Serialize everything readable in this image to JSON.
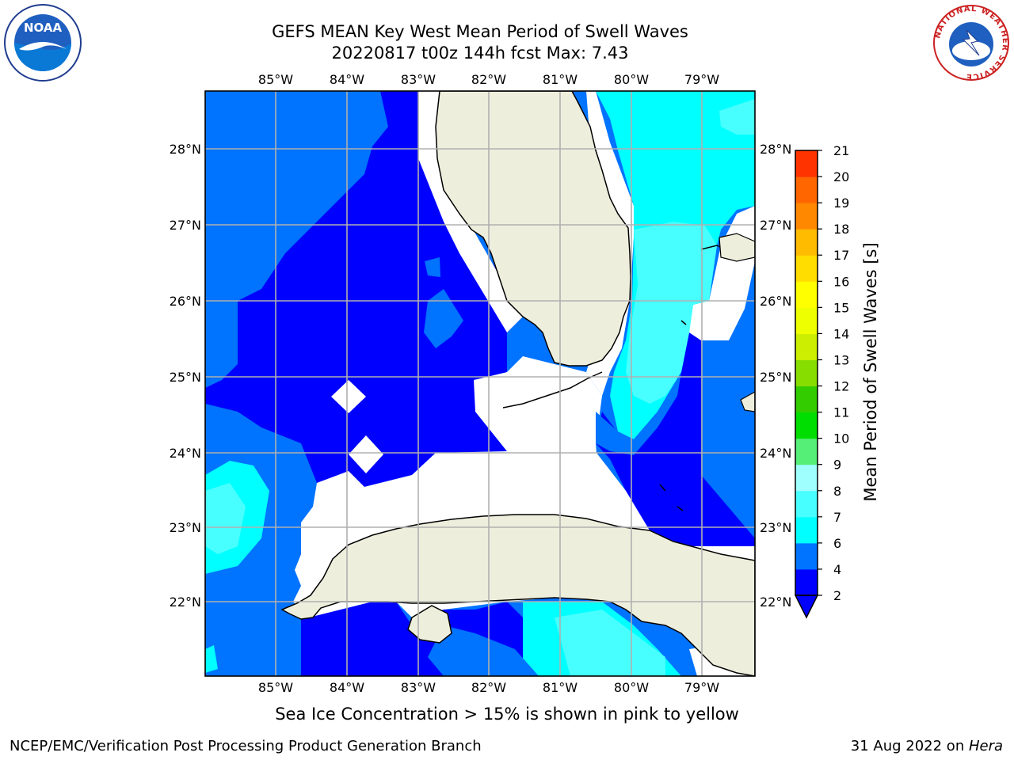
{
  "header": {
    "title_line1": "GEFS MEAN Key West Mean Period of Swell Waves",
    "title_line2": "20220817 t00z 144h fcst   Max: 7.43"
  },
  "logos": {
    "left": {
      "icon": "noaa-logo-icon",
      "text": "NOAA"
    },
    "right": {
      "icon": "national-weather-service-logo-icon",
      "text": "NATIONAL WEATHER SERVICE"
    }
  },
  "map": {
    "lon_labels": [
      "85°W",
      "84°W",
      "83°W",
      "82°W",
      "81°W",
      "80°W",
      "79°W"
    ],
    "lat_labels": [
      "28°N",
      "27°N",
      "26°N",
      "25°N",
      "24°N",
      "23°N",
      "22°N"
    ],
    "colors": {
      "land": "#eeeedd",
      "coast": "#000000",
      "grid": "#b0b0b0",
      "no_data": "#ffffff"
    }
  },
  "colorbar": {
    "label": "Mean Period of Swell Waves [s]",
    "ticks": [
      "2",
      "4",
      "6",
      "7",
      "8",
      "9",
      "10",
      "11",
      "12",
      "13",
      "14",
      "15",
      "16",
      "17",
      "18",
      "19",
      "20",
      "21"
    ],
    "colors": [
      "#0000ff",
      "#0073ff",
      "#00ffff",
      "#48ffff",
      "#9fffff",
      "#55ee77",
      "#00dd00",
      "#33cc00",
      "#88dd00",
      "#ccee00",
      "#eeff00",
      "#ffff00",
      "#ffdd00",
      "#ffbb00",
      "#ff8800",
      "#ff6600",
      "#ff3300",
      "#ff0000"
    ],
    "under_color": "#0000ff"
  },
  "footer": {
    "note": "Sea Ice Concentration > 15% is shown in pink to yellow",
    "credit_left": "NCEP/EMC/Verification Post Processing Product Generation Branch",
    "date": "31 Aug 2022 on ",
    "system": "Hera"
  }
}
